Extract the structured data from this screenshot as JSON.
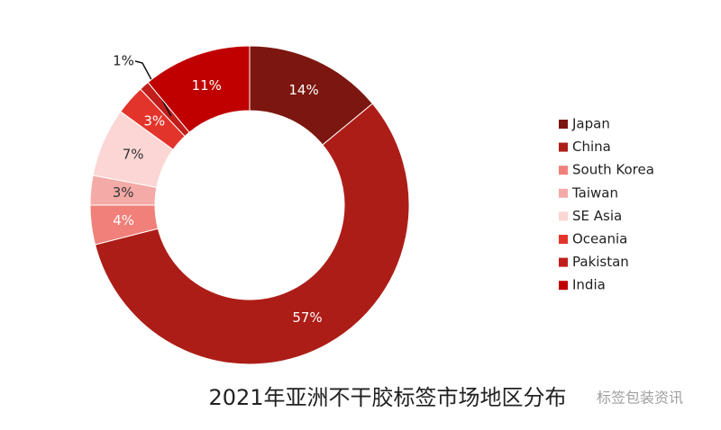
{
  "chart_data": {
    "type": "donut",
    "title": "2021年亚洲不干胶标签市场地区分布",
    "categories": [
      "Japan",
      "China",
      "South Korea",
      "Taiwan",
      "SE Asia",
      "Oceania",
      "Pakistan",
      "India"
    ],
    "values": [
      14,
      57,
      4,
      3,
      7,
      3,
      1,
      11
    ],
    "value_labels": [
      "14%",
      "57%",
      "4%",
      "3%",
      "7%",
      "3%",
      "1%",
      "11%"
    ],
    "colors": [
      "#7b1710",
      "#ad1d18",
      "#f08079",
      "#f4aaa6",
      "#fbd6d4",
      "#e3342b",
      "#c01d1b",
      "#c00000"
    ],
    "legend": "right",
    "watermark": "标签包装资讯"
  }
}
